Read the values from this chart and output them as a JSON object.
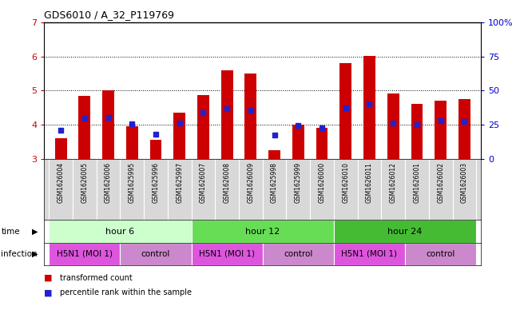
{
  "title": "GDS6010 / A_32_P119769",
  "samples": [
    "GSM1626004",
    "GSM1626005",
    "GSM1626006",
    "GSM1625995",
    "GSM1625996",
    "GSM1625997",
    "GSM1626007",
    "GSM1626008",
    "GSM1626009",
    "GSM1625998",
    "GSM1625999",
    "GSM1626000",
    "GSM1626010",
    "GSM1626011",
    "GSM1626012",
    "GSM1626001",
    "GSM1626002",
    "GSM1626003"
  ],
  "red_values": [
    3.6,
    4.85,
    5.0,
    3.95,
    3.55,
    4.35,
    4.87,
    5.6,
    5.5,
    3.25,
    4.0,
    3.9,
    5.8,
    6.02,
    4.92,
    4.6,
    4.7,
    4.75
  ],
  "blue_values": [
    3.85,
    4.2,
    4.22,
    4.02,
    3.73,
    4.05,
    4.35,
    4.48,
    4.43,
    3.7,
    3.99,
    3.9,
    4.5,
    4.62,
    4.05,
    4.0,
    4.12,
    4.1
  ],
  "ylim_left": [
    3,
    7
  ],
  "ylim_right": [
    0,
    100
  ],
  "yticks_left": [
    3,
    4,
    5,
    6,
    7
  ],
  "yticks_right": [
    0,
    25,
    50,
    75,
    100
  ],
  "bar_color": "#cc0000",
  "marker_color": "#2222cc",
  "bar_bottom": 3.0,
  "bar_width": 0.5,
  "time_groups": [
    {
      "label": "hour 6",
      "start": 0,
      "end": 6,
      "color": "#ccffcc"
    },
    {
      "label": "hour 12",
      "start": 6,
      "end": 12,
      "color": "#66dd55"
    },
    {
      "label": "hour 24",
      "start": 12,
      "end": 18,
      "color": "#44bb33"
    }
  ],
  "infection_groups": [
    {
      "label": "H5N1 (MOI 1)",
      "start": 0,
      "end": 3,
      "color": "#dd55dd"
    },
    {
      "label": "control",
      "start": 3,
      "end": 6,
      "color": "#cc88cc"
    },
    {
      "label": "H5N1 (MOI 1)",
      "start": 6,
      "end": 9,
      "color": "#dd55dd"
    },
    {
      "label": "control",
      "start": 9,
      "end": 12,
      "color": "#cc88cc"
    },
    {
      "label": "H5N1 (MOI 1)",
      "start": 12,
      "end": 15,
      "color": "#dd55dd"
    },
    {
      "label": "control",
      "start": 15,
      "end": 18,
      "color": "#cc88cc"
    }
  ],
  "tick_color_left": "#cc0000",
  "tick_color_right": "#0000cc",
  "grid_yticks": [
    4,
    5,
    6
  ],
  "xlim": [
    -0.7,
    17.7
  ],
  "sample_bg": "#d8d8d8",
  "legend": [
    {
      "color": "#cc0000",
      "label": "transformed count"
    },
    {
      "color": "#2222cc",
      "label": "percentile rank within the sample"
    }
  ]
}
